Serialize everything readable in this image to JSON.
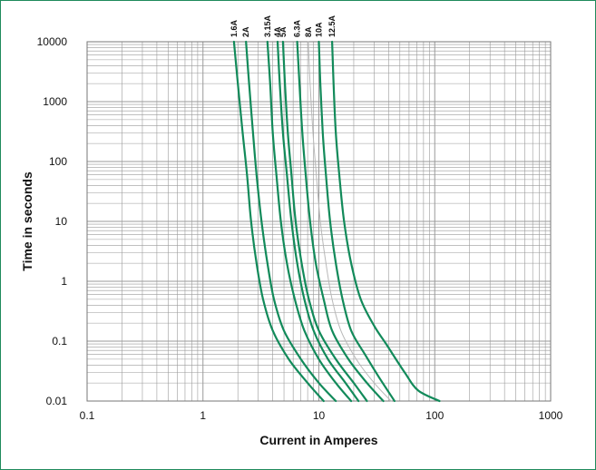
{
  "chart_data": {
    "type": "line",
    "title": "",
    "xlabel": "Current  in Amperes",
    "ylabel": "Time in seconds",
    "x_scale": "log",
    "y_scale": "log",
    "xlim": [
      0.1,
      1000
    ],
    "ylim": [
      0.01,
      10000
    ],
    "x_ticks": [
      "0.1",
      "1",
      "10",
      "100",
      "1000"
    ],
    "y_ticks": [
      "10000",
      "1000",
      "100",
      "10",
      "1",
      "0.1",
      "0.01"
    ],
    "grid": true,
    "legend": "none",
    "colors": {
      "series": "#128a5a",
      "ref": "#b8b8b8",
      "grid": "#9a9a9a",
      "frame": "#1f8a5b"
    },
    "series": [
      {
        "name": "1.6A",
        "color": "#128a5a",
        "points": [
          [
            1.85,
            10000
          ],
          [
            2.0,
            2000
          ],
          [
            2.2,
            300
          ],
          [
            2.4,
            60
          ],
          [
            2.6,
            10
          ],
          [
            2.9,
            2
          ],
          [
            3.3,
            0.5
          ],
          [
            4.0,
            0.15
          ],
          [
            5.5,
            0.05
          ],
          [
            8.0,
            0.02
          ],
          [
            11,
            0.01
          ]
        ]
      },
      {
        "name": "2A",
        "color": "#128a5a",
        "points": [
          [
            2.35,
            10000
          ],
          [
            2.5,
            2000
          ],
          [
            2.7,
            300
          ],
          [
            2.9,
            60
          ],
          [
            3.2,
            10
          ],
          [
            3.6,
            2
          ],
          [
            4.1,
            0.5
          ],
          [
            5.0,
            0.15
          ],
          [
            7.0,
            0.05
          ],
          [
            10,
            0.02
          ],
          [
            14,
            0.01
          ]
        ]
      },
      {
        "name": "3.15A",
        "color": "#128a5a",
        "points": [
          [
            3.6,
            10000
          ],
          [
            3.8,
            2000
          ],
          [
            4.0,
            300
          ],
          [
            4.3,
            60
          ],
          [
            4.7,
            10
          ],
          [
            5.3,
            2
          ],
          [
            6.2,
            0.5
          ],
          [
            7.5,
            0.15
          ],
          [
            10,
            0.05
          ],
          [
            14,
            0.02
          ],
          [
            19,
            0.01
          ]
        ]
      },
      {
        "name": "4A",
        "color": "#128a5a",
        "points": [
          [
            4.4,
            10000
          ],
          [
            4.6,
            2000
          ],
          [
            4.9,
            300
          ],
          [
            5.3,
            60
          ],
          [
            5.8,
            10
          ],
          [
            6.5,
            2
          ],
          [
            7.5,
            0.5
          ],
          [
            9.0,
            0.15
          ],
          [
            12,
            0.05
          ],
          [
            17,
            0.02
          ],
          [
            22,
            0.01
          ]
        ]
      },
      {
        "name": "5A",
        "color": "#128a5a",
        "points": [
          [
            4.9,
            10000
          ],
          [
            5.1,
            2000
          ],
          [
            5.4,
            300
          ],
          [
            5.8,
            60
          ],
          [
            6.3,
            10
          ],
          [
            7.1,
            2
          ],
          [
            8.2,
            0.5
          ],
          [
            10,
            0.15
          ],
          [
            14,
            0.05
          ],
          [
            20,
            0.02
          ],
          [
            26,
            0.01
          ]
        ]
      },
      {
        "name": "6.3A",
        "color": "#128a5a",
        "points": [
          [
            6.5,
            10000
          ],
          [
            6.8,
            2000
          ],
          [
            7.2,
            300
          ],
          [
            7.7,
            60
          ],
          [
            8.4,
            10
          ],
          [
            9.4,
            2
          ],
          [
            11,
            0.5
          ],
          [
            13,
            0.15
          ],
          [
            18,
            0.05
          ],
          [
            26,
            0.02
          ],
          [
            36,
            0.01
          ]
        ]
      },
      {
        "name": "8A",
        "color": "#b8b8b8",
        "points": [
          [
            8.1,
            10000
          ],
          [
            8.4,
            2000
          ],
          [
            8.9,
            300
          ],
          [
            9.5,
            60
          ],
          [
            10.3,
            10
          ],
          [
            11.5,
            2
          ],
          [
            13,
            0.5
          ],
          [
            15.5,
            0.15
          ],
          [
            21,
            0.05
          ],
          [
            30,
            0.02
          ],
          [
            42,
            0.01
          ]
        ]
      },
      {
        "name": "10A",
        "color": "#128a5a",
        "points": [
          [
            10,
            10000
          ],
          [
            10.3,
            2000
          ],
          [
            10.8,
            300
          ],
          [
            11.5,
            60
          ],
          [
            12.5,
            10
          ],
          [
            14,
            2
          ],
          [
            16,
            0.5
          ],
          [
            19,
            0.15
          ],
          [
            25,
            0.06
          ],
          [
            33,
            0.025
          ],
          [
            45,
            0.01
          ]
        ]
      },
      {
        "name": "12.5A",
        "color": "#128a5a",
        "points": [
          [
            13,
            10000
          ],
          [
            13.4,
            2000
          ],
          [
            14,
            300
          ],
          [
            15,
            60
          ],
          [
            16.5,
            10
          ],
          [
            19,
            2
          ],
          [
            23,
            0.5
          ],
          [
            30,
            0.18
          ],
          [
            38,
            0.09
          ],
          [
            55,
            0.03
          ],
          [
            72,
            0.015
          ],
          [
            110,
            0.01
          ]
        ]
      }
    ]
  }
}
